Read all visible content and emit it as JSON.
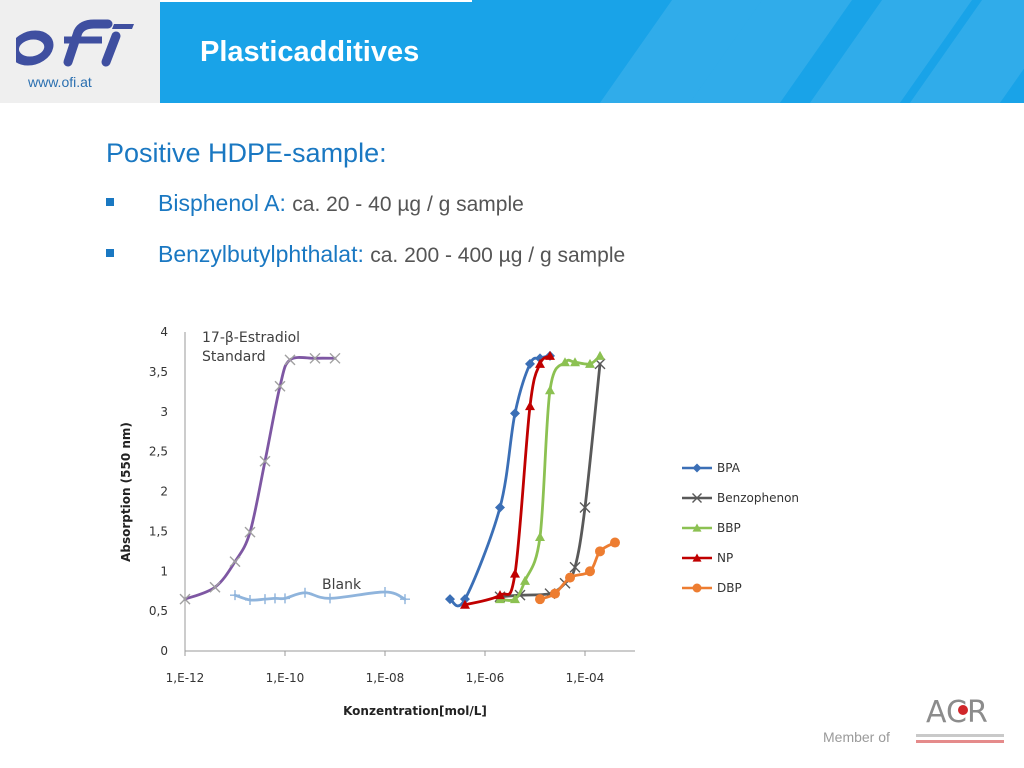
{
  "header": {
    "logo_text": "ofi",
    "logo_url": "www.ofi.at",
    "title": "Plasticadditives"
  },
  "content": {
    "subtitle": "Positive HDPE-sample:",
    "bullets": [
      {
        "term": "Bisphenol A:",
        "value": "ca. 20 - 40 µg / g sample"
      },
      {
        "term": "Benzylbutylphthalat:",
        "value": "ca. 200 - 400 µg / g sample"
      }
    ]
  },
  "chart_data": {
    "type": "line",
    "xlabel": "Konzentration[mol/L]",
    "ylabel": "Absorption (550 nm)",
    "xscale": "log",
    "xlim": [
      -12,
      -3
    ],
    "ylim": [
      0,
      4
    ],
    "xticks": [
      "1,E-12",
      "1,E-10",
      "1,E-08",
      "1,E-06",
      "1,E-04"
    ],
    "yticks": [
      "0",
      "0,5",
      "1",
      "1,5",
      "2",
      "2,5",
      "3",
      "3,5",
      "4"
    ],
    "grid": false,
    "legend_position": "right",
    "annotations": [
      "17-β-Estradiol",
      "Standard",
      "Blank"
    ],
    "series": [
      {
        "name": "BPA",
        "color": "#3b6fb6",
        "marker": "diamond",
        "points": [
          [
            -6.7,
            0.65
          ],
          [
            -6.4,
            0.65
          ],
          [
            -5.7,
            1.8
          ],
          [
            -5.4,
            2.98
          ],
          [
            -5.1,
            3.6
          ],
          [
            -4.9,
            3.67
          ],
          [
            -4.7,
            3.7
          ]
        ]
      },
      {
        "name": "Benzophenon",
        "color": "#595959",
        "marker": "x",
        "points": [
          [
            -5.7,
            0.68
          ],
          [
            -5.3,
            0.7
          ],
          [
            -4.7,
            0.72
          ],
          [
            -4.4,
            0.85
          ],
          [
            -4.2,
            1.05
          ],
          [
            -4.0,
            1.8
          ],
          [
            -3.7,
            3.6
          ]
        ]
      },
      {
        "name": "BBP",
        "color": "#8cc152",
        "marker": "triangle",
        "points": [
          [
            -5.7,
            0.65
          ],
          [
            -5.4,
            0.65
          ],
          [
            -5.2,
            0.88
          ],
          [
            -4.9,
            1.43
          ],
          [
            -4.7,
            3.27
          ],
          [
            -4.4,
            3.62
          ],
          [
            -4.2,
            3.62
          ],
          [
            -3.9,
            3.6
          ],
          [
            -3.7,
            3.7
          ]
        ]
      },
      {
        "name": "NP",
        "color": "#c00000",
        "marker": "triangle",
        "points": [
          [
            -6.4,
            0.58
          ],
          [
            -5.7,
            0.7
          ],
          [
            -5.4,
            0.97
          ],
          [
            -5.1,
            3.07
          ],
          [
            -4.9,
            3.6
          ],
          [
            -4.7,
            3.7
          ]
        ]
      },
      {
        "name": "DBP",
        "color": "#ed7d31",
        "marker": "circle",
        "points": [
          [
            -4.9,
            0.65
          ],
          [
            -4.6,
            0.72
          ],
          [
            -4.3,
            0.92
          ],
          [
            -3.9,
            1.0
          ],
          [
            -3.7,
            1.25
          ],
          [
            -3.4,
            1.36
          ]
        ]
      },
      {
        "name": "",
        "color": "#7e57a3",
        "marker": "x",
        "points": [
          [
            -12.0,
            0.65
          ],
          [
            -11.4,
            0.8
          ],
          [
            -11.0,
            1.12
          ],
          [
            -10.7,
            1.49
          ],
          [
            -10.4,
            2.38
          ],
          [
            -10.1,
            3.32
          ],
          [
            -9.9,
            3.65
          ],
          [
            -9.4,
            3.67
          ],
          [
            -9.0,
            3.67
          ]
        ]
      },
      {
        "name": "",
        "color": "#8fb4dc",
        "marker": "plus",
        "points": [
          [
            -11.0,
            0.7
          ],
          [
            -10.7,
            0.64
          ],
          [
            -10.4,
            0.65
          ],
          [
            -10.2,
            0.66
          ],
          [
            -10.0,
            0.66
          ],
          [
            -9.6,
            0.73
          ],
          [
            -9.1,
            0.66
          ],
          [
            -8.0,
            0.74
          ],
          [
            -7.6,
            0.65
          ]
        ]
      }
    ]
  },
  "footer": {
    "member_text": "Member of",
    "partner_logo_text": "ACR"
  }
}
